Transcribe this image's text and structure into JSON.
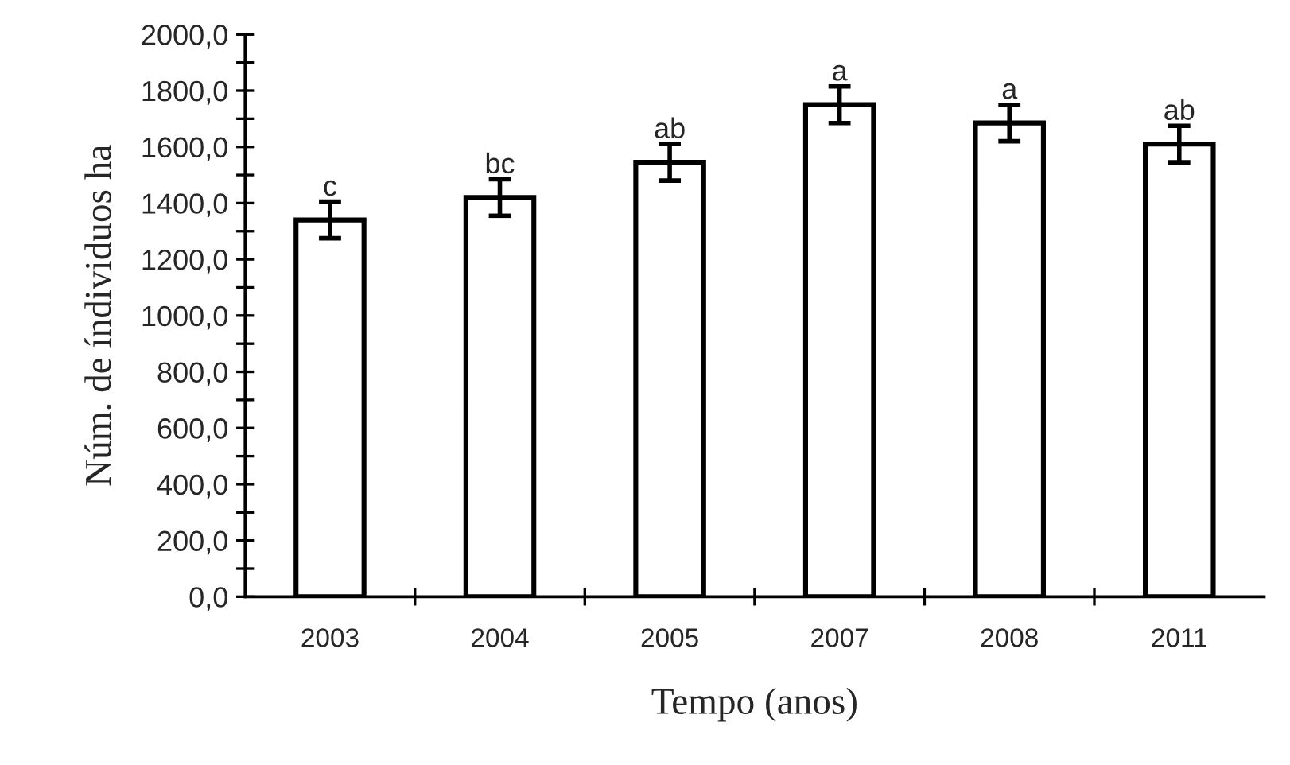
{
  "chart_data": {
    "type": "bar",
    "xlabel": "Tempo (anos)",
    "ylabel": "Núm. de índividuos ha",
    "categories": [
      "2003",
      "2004",
      "2005",
      "2007",
      "2008",
      "2011"
    ],
    "values": [
      1340,
      1420,
      1545,
      1750,
      1685,
      1610
    ],
    "errors": [
      65,
      65,
      65,
      65,
      65,
      65
    ],
    "color": "#ffffff",
    "ylim": [
      0,
      2000
    ],
    "yticks": [
      {
        "value": 0,
        "label": "0,0"
      },
      {
        "value": 100,
        "label": null
      },
      {
        "value": 200,
        "label": "200,0"
      },
      {
        "value": 300,
        "label": null
      },
      {
        "value": 400,
        "label": "400,0"
      },
      {
        "value": 500,
        "label": null
      },
      {
        "value": 600,
        "label": "600,0"
      },
      {
        "value": 700,
        "label": null
      },
      {
        "value": 800,
        "label": "800,0"
      },
      {
        "value": 900,
        "label": null
      },
      {
        "value": 1000,
        "label": "1000,0"
      },
      {
        "value": 1100,
        "label": null
      },
      {
        "value": 1200,
        "label": "1200,0"
      },
      {
        "value": 1300,
        "label": null
      },
      {
        "value": 1400,
        "label": "1400,0"
      },
      {
        "value": 1500,
        "label": null
      },
      {
        "value": 1600,
        "label": "1600,0"
      },
      {
        "value": 1700,
        "label": null
      },
      {
        "value": 1800,
        "label": "1800,0"
      },
      {
        "value": 1900,
        "label": null
      },
      {
        "value": 2000,
        "label": "2000,0"
      }
    ],
    "annotations": [
      {
        "text": "c",
        "x": "2003",
        "y": 1405
      },
      {
        "text": "bc",
        "x": "2004",
        "y": 1485
      },
      {
        "text": "ab",
        "x": "2005",
        "y": 1610
      },
      {
        "text": "a",
        "x": "2007",
        "y": 1815
      },
      {
        "text": "a",
        "x": "2008",
        "y": 1750
      },
      {
        "text": "ab",
        "x": "2011",
        "y": 1675
      }
    ],
    "grid": false,
    "legend": false
  }
}
